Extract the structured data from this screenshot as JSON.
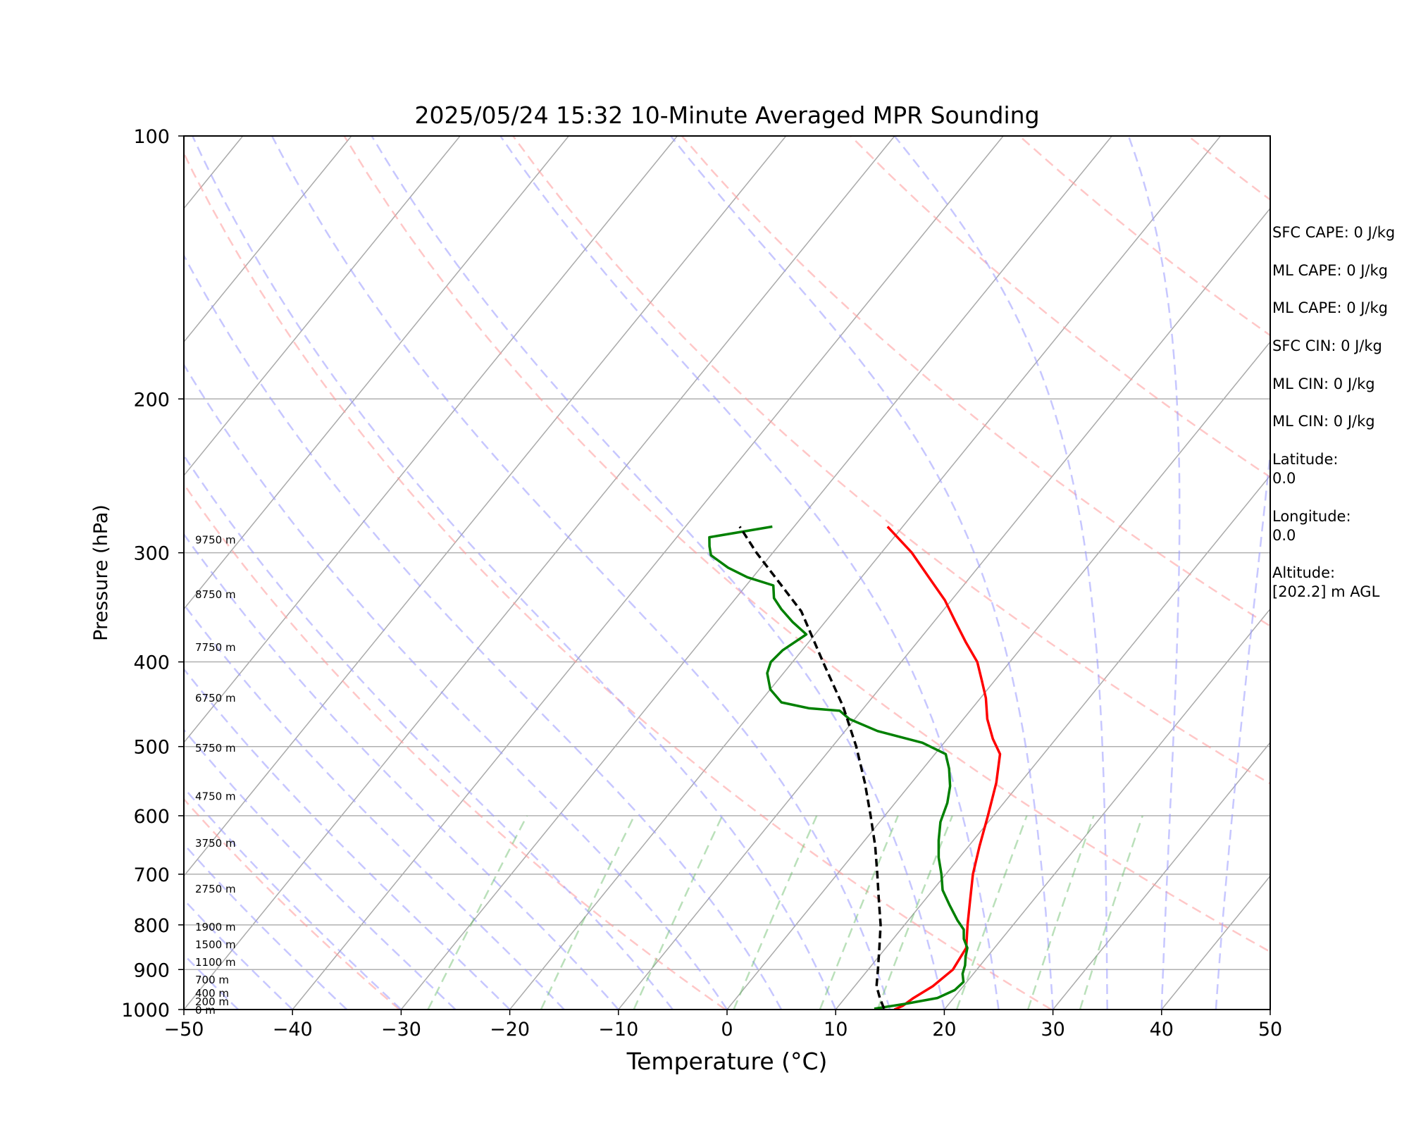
{
  "chart_data": {
    "type": "line",
    "title": "2025/05/24 15:32 10-Minute Averaged MPR Sounding",
    "xlabel": "Temperature (°C)",
    "ylabel": "Pressure (hPa)",
    "xlim": [
      -50,
      50
    ],
    "ylim": [
      1000,
      100
    ],
    "y_scale": "log",
    "x_ticks": [
      "−50",
      "−40",
      "−30",
      "−20",
      "−10",
      "0",
      "10",
      "20",
      "30",
      "40",
      "50"
    ],
    "y_ticks": [
      "100",
      "200",
      "300",
      "400",
      "500",
      "600",
      "700",
      "800",
      "900",
      "1000"
    ],
    "grid": true,
    "height_labels": [
      {
        "label": "0 m",
        "p": 1002
      },
      {
        "label": "200 m",
        "p": 980
      },
      {
        "label": "400 m",
        "p": 958
      },
      {
        "label": "700 m",
        "p": 925
      },
      {
        "label": "1100 m",
        "p": 883
      },
      {
        "label": "1500 m",
        "p": 843
      },
      {
        "label": "1900 m",
        "p": 805
      },
      {
        "label": "2750 m",
        "p": 728
      },
      {
        "label": "3750 m",
        "p": 645
      },
      {
        "label": "4750 m",
        "p": 570
      },
      {
        "label": "5750 m",
        "p": 502
      },
      {
        "label": "6750 m",
        "p": 440
      },
      {
        "label": "7750 m",
        "p": 385
      },
      {
        "label": "8750 m",
        "p": 335
      },
      {
        "label": "9750 m",
        "p": 290
      }
    ],
    "series": [
      {
        "name": "",
        "color": "#ff0000",
        "p": [
          1000,
          990,
          970,
          940,
          900,
          850,
          800,
          750,
          700,
          650,
          600,
          550,
          510,
          490,
          465,
          440,
          420,
          400,
          380,
          360,
          340,
          320,
          300,
          280
        ],
        "t": [
          15.4,
          15.9,
          16.3,
          17.2,
          17.8,
          17.4,
          15.8,
          14.2,
          12.5,
          11.0,
          9.5,
          7.8,
          6.0,
          4.2,
          2.2,
          0.5,
          -1.2,
          -3.0,
          -5.5,
          -8.0,
          -10.6,
          -13.8,
          -17.2,
          -21.4
        ]
      },
      {
        "name": "",
        "color": "#008000",
        "p": [
          998,
          985,
          970,
          950,
          930,
          910,
          890,
          870,
          850,
          830,
          810,
          790,
          760,
          730,
          700,
          670,
          640,
          610,
          580,
          555,
          530,
          510,
          495,
          480,
          465,
          455,
          452,
          445,
          430,
          412,
          400,
          388,
          372,
          360,
          348,
          338,
          327,
          320,
          312,
          302,
          295,
          288,
          280
        ],
        "t": [
          13.5,
          16.0,
          18.5,
          19.5,
          19.7,
          19.0,
          18.6,
          18.0,
          17.5,
          16.5,
          15.8,
          14.5,
          12.7,
          10.9,
          9.6,
          8.1,
          6.8,
          5.6,
          4.8,
          3.8,
          2.4,
          1.0,
          -2.0,
          -7.0,
          -10.5,
          -12.0,
          -15.0,
          -18.0,
          -20.0,
          -21.5,
          -22.0,
          -21.8,
          -20.8,
          -23.0,
          -25.0,
          -26.5,
          -27.5,
          -30.5,
          -33.0,
          -35.5,
          -36.3,
          -37.0,
          -32.0
        ]
      },
      {
        "name": "",
        "color": "#000000",
        "dashed": true,
        "p": [
          998,
          970,
          940,
          900,
          850,
          800,
          750,
          700,
          650,
          600,
          550,
          500,
          450,
          400,
          350,
          300,
          280
        ],
        "t": [
          14.4,
          13.2,
          12.0,
          10.9,
          9.4,
          7.8,
          5.8,
          3.7,
          1.4,
          -1.3,
          -4.3,
          -7.8,
          -12.0,
          -17.2,
          -23.0,
          -31.5,
          -35.0
        ]
      }
    ]
  },
  "panel": {
    "sfc_cape": "SFC CAPE: 0 J/kg",
    "ml_cape_1": "ML CAPE: 0 J/kg",
    "ml_cape_2": "ML CAPE: 0 J/kg",
    "sfc_cin": "SFC CIN: 0 J/kg",
    "ml_cin_1": "ML CIN: 0 J/kg",
    "ml_cin_2": "ML CIN: 0 J/kg",
    "latitude_label": "Latitude:",
    "latitude_value": "0.0",
    "longitude_label": "Longitude:",
    "longitude_value": "0.0",
    "altitude_label": "Altitude:",
    "altitude_value": "[202.2] m AGL"
  }
}
